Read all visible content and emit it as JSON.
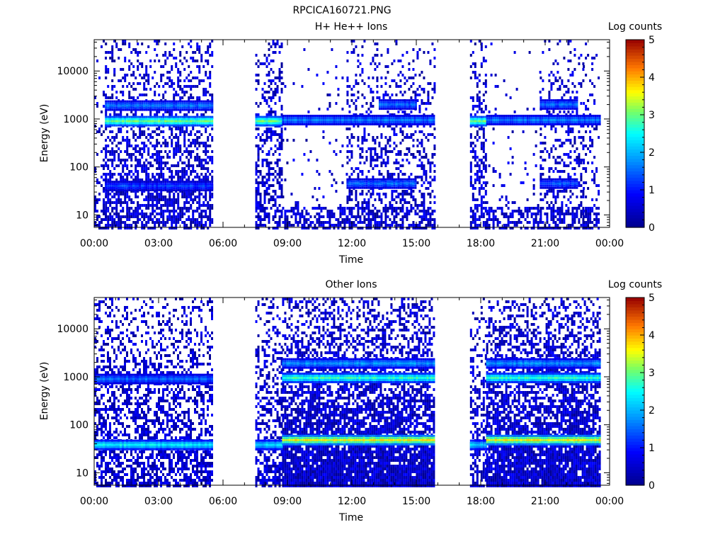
{
  "title": "RPCICA160721.PNG",
  "chart_data": [
    {
      "type": "heatmap",
      "title": "H+ He++ Ions",
      "xlabel": "Time",
      "ylabel": "Energy (eV)",
      "y_scale": "log",
      "ylim": [
        5.5,
        45000
      ],
      "xlim": [
        "00:00",
        "24:00"
      ],
      "x_ticks": [
        "00:00",
        "03:00",
        "06:00",
        "09:00",
        "12:00",
        "15:00",
        "18:00",
        "21:00",
        "00:00"
      ],
      "y_ticks": [
        "10",
        "100",
        "1000",
        "10000"
      ],
      "colorbar": {
        "label": "Log counts",
        "range": [
          0,
          5
        ],
        "ticks": [
          "0",
          "1",
          "2",
          "3",
          "4",
          "5"
        ]
      },
      "data_intervals": [
        [
          "00:00",
          "00:30"
        ],
        [
          "00:30",
          "05:30"
        ],
        [
          "07:30",
          "08:45"
        ],
        [
          "08:45",
          "11:45"
        ],
        [
          "11:45",
          "15:50"
        ],
        [
          "17:30",
          "18:15"
        ],
        [
          "18:15",
          "20:45"
        ],
        [
          "20:45",
          "22:45"
        ],
        [
          "22:45",
          "23:30"
        ]
      ],
      "bands": [
        {
          "t_start": "00:30",
          "t_end": "05:30",
          "energy_eV": 900,
          "log_counts": 3.0
        },
        {
          "t_start": "00:30",
          "t_end": "05:30",
          "energy_eV": 1900,
          "log_counts": 1.6
        },
        {
          "t_start": "00:30",
          "t_end": "05:30",
          "energy_eV": 40,
          "log_counts": 1.2
        },
        {
          "t_start": "07:30",
          "t_end": "08:45",
          "energy_eV": 900,
          "log_counts": 3.0
        },
        {
          "t_start": "08:45",
          "t_end": "15:50",
          "energy_eV": 950,
          "log_counts": 1.6
        },
        {
          "t_start": "11:45",
          "t_end": "15:00",
          "energy_eV": 45,
          "log_counts": 1.5
        },
        {
          "t_start": "13:15",
          "t_end": "15:00",
          "energy_eV": 2000,
          "log_counts": 1.5
        },
        {
          "t_start": "17:30",
          "t_end": "18:15",
          "energy_eV": 900,
          "log_counts": 3.0
        },
        {
          "t_start": "18:15",
          "t_end": "23:30",
          "energy_eV": 950,
          "log_counts": 1.6
        },
        {
          "t_start": "20:45",
          "t_end": "22:30",
          "energy_eV": 45,
          "log_counts": 1.4
        },
        {
          "t_start": "20:45",
          "t_end": "22:30",
          "energy_eV": 2000,
          "log_counts": 1.5
        }
      ]
    },
    {
      "type": "heatmap",
      "title": "Other Ions",
      "xlabel": "Time",
      "ylabel": "Energy (eV)",
      "y_scale": "log",
      "ylim": [
        5.5,
        45000
      ],
      "xlim": [
        "00:00",
        "24:00"
      ],
      "x_ticks": [
        "00:00",
        "03:00",
        "06:00",
        "09:00",
        "12:00",
        "15:00",
        "18:00",
        "21:00",
        "00:00"
      ],
      "y_ticks": [
        "10",
        "100",
        "1000",
        "10000"
      ],
      "colorbar": {
        "label": "Log counts",
        "range": [
          0,
          5
        ],
        "ticks": [
          "0",
          "1",
          "2",
          "3",
          "4",
          "5"
        ]
      },
      "data_intervals": [
        [
          "00:00",
          "05:30"
        ],
        [
          "07:30",
          "08:45"
        ],
        [
          "08:45",
          "15:50"
        ],
        [
          "17:30",
          "18:15"
        ],
        [
          "18:15",
          "23:30"
        ]
      ],
      "bands": [
        {
          "t_start": "00:00",
          "t_end": "05:30",
          "energy_eV": 38,
          "log_counts": 2.4
        },
        {
          "t_start": "00:00",
          "t_end": "05:30",
          "energy_eV": 900,
          "log_counts": 1.5
        },
        {
          "t_start": "07:30",
          "t_end": "08:45",
          "energy_eV": 38,
          "log_counts": 2.2
        },
        {
          "t_start": "08:45",
          "t_end": "15:50",
          "energy_eV": 48,
          "log_counts": 3.6
        },
        {
          "t_start": "08:45",
          "t_end": "15:50",
          "energy_eV": 950,
          "log_counts": 2.7
        },
        {
          "t_start": "08:45",
          "t_end": "15:50",
          "energy_eV": 1900,
          "log_counts": 1.8
        },
        {
          "t_start": "17:30",
          "t_end": "18:15",
          "energy_eV": 38,
          "log_counts": 2.2
        },
        {
          "t_start": "18:15",
          "t_end": "23:30",
          "energy_eV": 48,
          "log_counts": 3.6
        },
        {
          "t_start": "18:15",
          "t_end": "23:30",
          "energy_eV": 950,
          "log_counts": 2.7
        },
        {
          "t_start": "18:15",
          "t_end": "23:30",
          "energy_eV": 1900,
          "log_counts": 1.8
        }
      ]
    }
  ]
}
